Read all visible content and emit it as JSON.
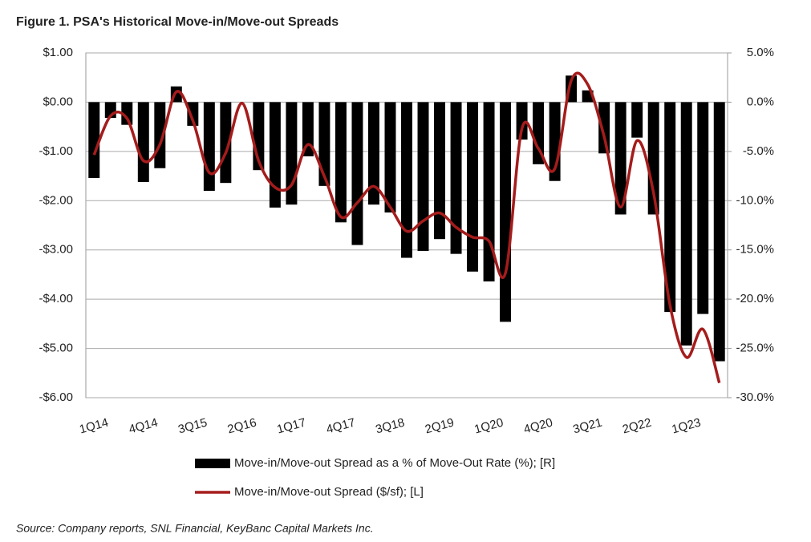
{
  "chart_data": {
    "type": "bar-line",
    "title": "Figure 1. PSA's Historical Move-in/Move-out Spreads",
    "source": "Source: Company reports, SNL Financial, KeyBanc Capital Markets Inc.",
    "categories": [
      "1Q14",
      null,
      null,
      "4Q14",
      null,
      null,
      "3Q15",
      null,
      null,
      "2Q16",
      null,
      null,
      "1Q17",
      null,
      null,
      "4Q17",
      null,
      null,
      "3Q18",
      null,
      null,
      "2Q19",
      null,
      null,
      "1Q20",
      null,
      null,
      "4Q20",
      null,
      null,
      "3Q21",
      null,
      null,
      "2Q22",
      null,
      null,
      "1Q23",
      null,
      null
    ],
    "series": [
      {
        "name": "Move-in/Move-out Spread as a % of Move-Out Rate (%);  [R]",
        "type": "bar",
        "axis": "y2",
        "color": "#000000",
        "values": [
          -7.7,
          -1.6,
          -2.3,
          -8.1,
          -6.7,
          1.6,
          -2.4,
          -9.0,
          -8.2,
          0,
          -6.9,
          -10.7,
          -10.4,
          -5.5,
          -8.5,
          -12.2,
          -14.5,
          -10.4,
          -11.2,
          -15.8,
          -15.1,
          -13.9,
          -15.4,
          -17.2,
          -18.2,
          -22.3,
          -3.8,
          -6.3,
          -8.0,
          2.7,
          1.2,
          -5.2,
          -11.4,
          -3.6,
          -11.4,
          -21.3,
          -24.7,
          -21.5,
          -26.3
        ]
      },
      {
        "name": "Move-in/Move-out Spread ($/sf); [L]",
        "type": "line",
        "axis": "y",
        "color": "#a51c1c",
        "values": [
          -1.07,
          -0.28,
          -0.33,
          -1.19,
          -0.86,
          0.21,
          -0.37,
          -1.43,
          -1.03,
          -0.02,
          -1.19,
          -1.73,
          -1.68,
          -0.86,
          -1.51,
          -2.33,
          -2.04,
          -1.71,
          -2.13,
          -2.62,
          -2.41,
          -2.25,
          -2.54,
          -2.74,
          -2.82,
          -3.47,
          -0.54,
          -0.94,
          -1.35,
          0.44,
          0.36,
          -0.7,
          -2.13,
          -0.78,
          -1.84,
          -4.12,
          -5.18,
          -4.61,
          -5.7
        ]
      }
    ],
    "ylim": [
      -6,
      1
    ],
    "yticks": [
      {
        "value": -6,
        "label": "-$6.00"
      },
      {
        "value": -5,
        "label": "-$5.00"
      },
      {
        "value": -4,
        "label": "-$4.00"
      },
      {
        "value": -3,
        "label": "-$3.00"
      },
      {
        "value": -2,
        "label": "-$2.00"
      },
      {
        "value": -1,
        "label": "-$1.00"
      },
      {
        "value": 0,
        "label": "$0.00"
      },
      {
        "value": 1,
        "label": "$1.00"
      }
    ],
    "y2lim": [
      -30,
      5
    ],
    "y2ticks": [
      {
        "value": -30,
        "label": "-30.0%"
      },
      {
        "value": -25,
        "label": "-25.0%"
      },
      {
        "value": -20,
        "label": "-20.0%"
      },
      {
        "value": -15,
        "label": "-15.0%"
      },
      {
        "value": -10,
        "label": "-10.0%"
      },
      {
        "value": -5,
        "label": "-5.0%"
      },
      {
        "value": 0,
        "label": "0.0%"
      },
      {
        "value": 5,
        "label": "5.0%"
      }
    ],
    "grid": true,
    "legend": "bottom"
  }
}
